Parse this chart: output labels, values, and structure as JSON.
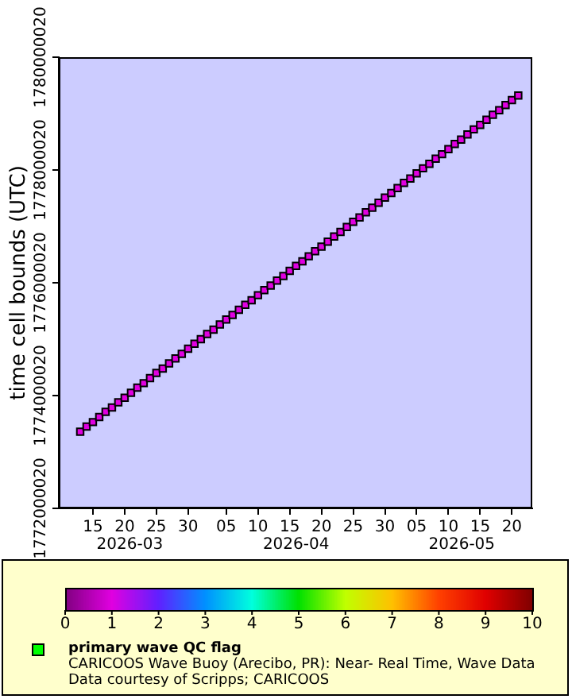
{
  "chart_data": {
    "type": "scatter",
    "ylabel": "time cell bounds (UTC)",
    "clabel": "primary wave QC flag",
    "annotations": [
      "2026-03",
      "2026-04",
      "2026-05",
      "CARICOOS Wave Buoy (Arecibo, PR): Near- Real Time, Wave Data",
      "Data courtesy of Scripps; CARICOOS"
    ],
    "x": [
      "2026-03-13",
      "2026-03-14",
      "2026-03-15",
      "2026-03-16",
      "2026-03-17",
      "2026-03-18",
      "2026-03-19",
      "2026-03-20",
      "2026-03-21",
      "2026-03-22",
      "2026-03-23",
      "2026-03-24",
      "2026-03-25",
      "2026-03-26",
      "2026-03-27",
      "2026-03-28",
      "2026-03-29",
      "2026-03-30",
      "2026-03-31",
      "2026-04-01",
      "2026-04-02",
      "2026-04-03",
      "2026-04-04",
      "2026-04-05",
      "2026-04-06",
      "2026-04-07",
      "2026-04-08",
      "2026-04-09",
      "2026-04-10",
      "2026-04-11",
      "2026-04-12",
      "2026-04-13",
      "2026-04-14",
      "2026-04-15",
      "2026-04-16",
      "2026-04-17",
      "2026-04-18",
      "2026-04-19",
      "2026-04-20",
      "2026-04-21",
      "2026-04-22",
      "2026-04-23",
      "2026-04-24",
      "2026-04-25",
      "2026-04-26",
      "2026-04-27",
      "2026-04-28",
      "2026-04-29",
      "2026-04-30",
      "2026-05-01",
      "2026-05-02",
      "2026-05-03",
      "2026-05-04",
      "2026-05-05",
      "2026-05-06",
      "2026-05-07",
      "2026-05-08",
      "2026-05-09",
      "2026-05-10",
      "2026-05-11",
      "2026-05-12",
      "2026-05-13",
      "2026-05-14",
      "2026-05-15",
      "2026-05-16",
      "2026-05-17",
      "2026-05-18",
      "2026-05-19",
      "2026-05-20",
      "2026-05-21"
    ],
    "values": [
      1773360000,
      1773450000,
      1773530000,
      1773620000,
      1773710000,
      1773790000,
      1773880000,
      1773960000,
      1774050000,
      1774140000,
      1774220000,
      1774310000,
      1774400000,
      1774480000,
      1774570000,
      1774660000,
      1774740000,
      1774830000,
      1774920000,
      1775000000,
      1775090000,
      1775170000,
      1775260000,
      1775350000,
      1775430000,
      1775520000,
      1775610000,
      1775690000,
      1775780000,
      1775870000,
      1775950000,
      1776040000,
      1776120000,
      1776210000,
      1776300000,
      1776380000,
      1776470000,
      1776560000,
      1776640000,
      1776730000,
      1776820000,
      1776900000,
      1776990000,
      1777080000,
      1777160000,
      1777250000,
      1777330000,
      1777420000,
      1777510000,
      1777590000,
      1777680000,
      1777770000,
      1777850000,
      1777940000,
      1778030000,
      1778110000,
      1778200000,
      1778280000,
      1778370000,
      1778460000,
      1778540000,
      1778630000,
      1778720000,
      1778800000,
      1778890000,
      1778980000,
      1779060000,
      1779150000,
      1779240000,
      1779320000
    ],
    "cvalues": [
      1,
      1,
      1,
      1,
      1,
      1,
      1,
      1,
      1,
      1,
      1,
      1,
      1,
      1,
      1,
      1,
      1,
      1,
      1,
      1,
      1,
      1,
      1,
      1,
      1,
      1,
      1,
      1,
      1,
      1,
      1,
      1,
      1,
      1,
      1,
      1,
      1,
      1,
      1,
      1,
      1,
      1,
      1,
      1,
      1,
      1,
      1,
      1,
      1,
      1,
      1,
      1,
      1,
      1,
      1,
      1,
      1,
      1,
      1,
      1,
      1,
      1,
      1,
      1,
      1,
      1,
      1,
      1,
      1,
      1
    ],
    "clim": [
      0,
      10
    ],
    "cticks": [
      0,
      1,
      2,
      3,
      4,
      5,
      6,
      7,
      8,
      9,
      10
    ],
    "xlim": [
      "2026-03-09T15:00",
      "2026-05-23T05:00"
    ],
    "xticks": [
      {
        "value": "2026-03-15",
        "label": "15"
      },
      {
        "value": "2026-03-20",
        "label": "20"
      },
      {
        "value": "2026-03-25",
        "label": "25"
      },
      {
        "value": "2026-03-30",
        "label": "30"
      },
      {
        "value": "2026-04-05",
        "label": "05"
      },
      {
        "value": "2026-04-10",
        "label": "10"
      },
      {
        "value": "2026-04-15",
        "label": "15"
      },
      {
        "value": "2026-04-20",
        "label": "20"
      },
      {
        "value": "2026-04-25",
        "label": "25"
      },
      {
        "value": "2026-04-30",
        "label": "30"
      },
      {
        "value": "2026-05-05",
        "label": "05"
      },
      {
        "value": "2026-05-10",
        "label": "10"
      },
      {
        "value": "2026-05-15",
        "label": "15"
      },
      {
        "value": "2026-05-20",
        "label": "20"
      }
    ],
    "ylim": [
      1772000020,
      1780000020
    ],
    "yticks": [
      1772000020,
      1774000020,
      1776000020,
      1778000020,
      1780000020
    ],
    "marker": "square",
    "grid": false
  }
}
